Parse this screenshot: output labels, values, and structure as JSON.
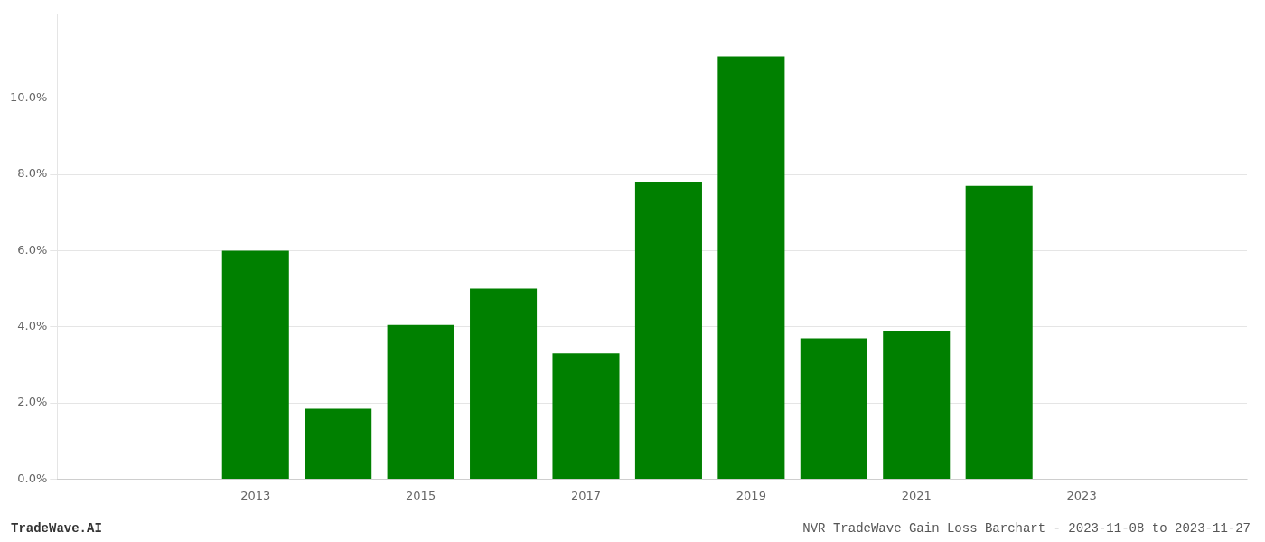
{
  "chart_data": {
    "type": "bar",
    "title": "NVR TradeWave Gain Loss Barchart - 2023-11-08 to 2023-11-27",
    "annotations": [
      "TradeWave.AI"
    ],
    "x": [
      2013,
      2014,
      2015,
      2016,
      2017,
      2018,
      2019,
      2020,
      2021,
      2022
    ],
    "values": [
      0.06,
      0.0185,
      0.0405,
      0.05,
      0.033,
      0.078,
      0.111,
      0.037,
      0.039,
      0.077
    ],
    "color": "#008000",
    "xlim": [
      2011.8,
      2023.8
    ],
    "xticks": [
      2013,
      2015,
      2017,
      2019,
      2021,
      2023
    ],
    "ylim": [
      0,
      0.122
    ],
    "yticks": [
      {
        "value": 0.0,
        "label": "0.0%"
      },
      {
        "value": 0.02,
        "label": "2.0%"
      },
      {
        "value": 0.04,
        "label": "4.0%"
      },
      {
        "value": 0.06,
        "label": "6.0%"
      },
      {
        "value": 0.08,
        "label": "8.0%"
      },
      {
        "value": 0.1,
        "label": "10.0%"
      }
    ],
    "grid": true
  }
}
